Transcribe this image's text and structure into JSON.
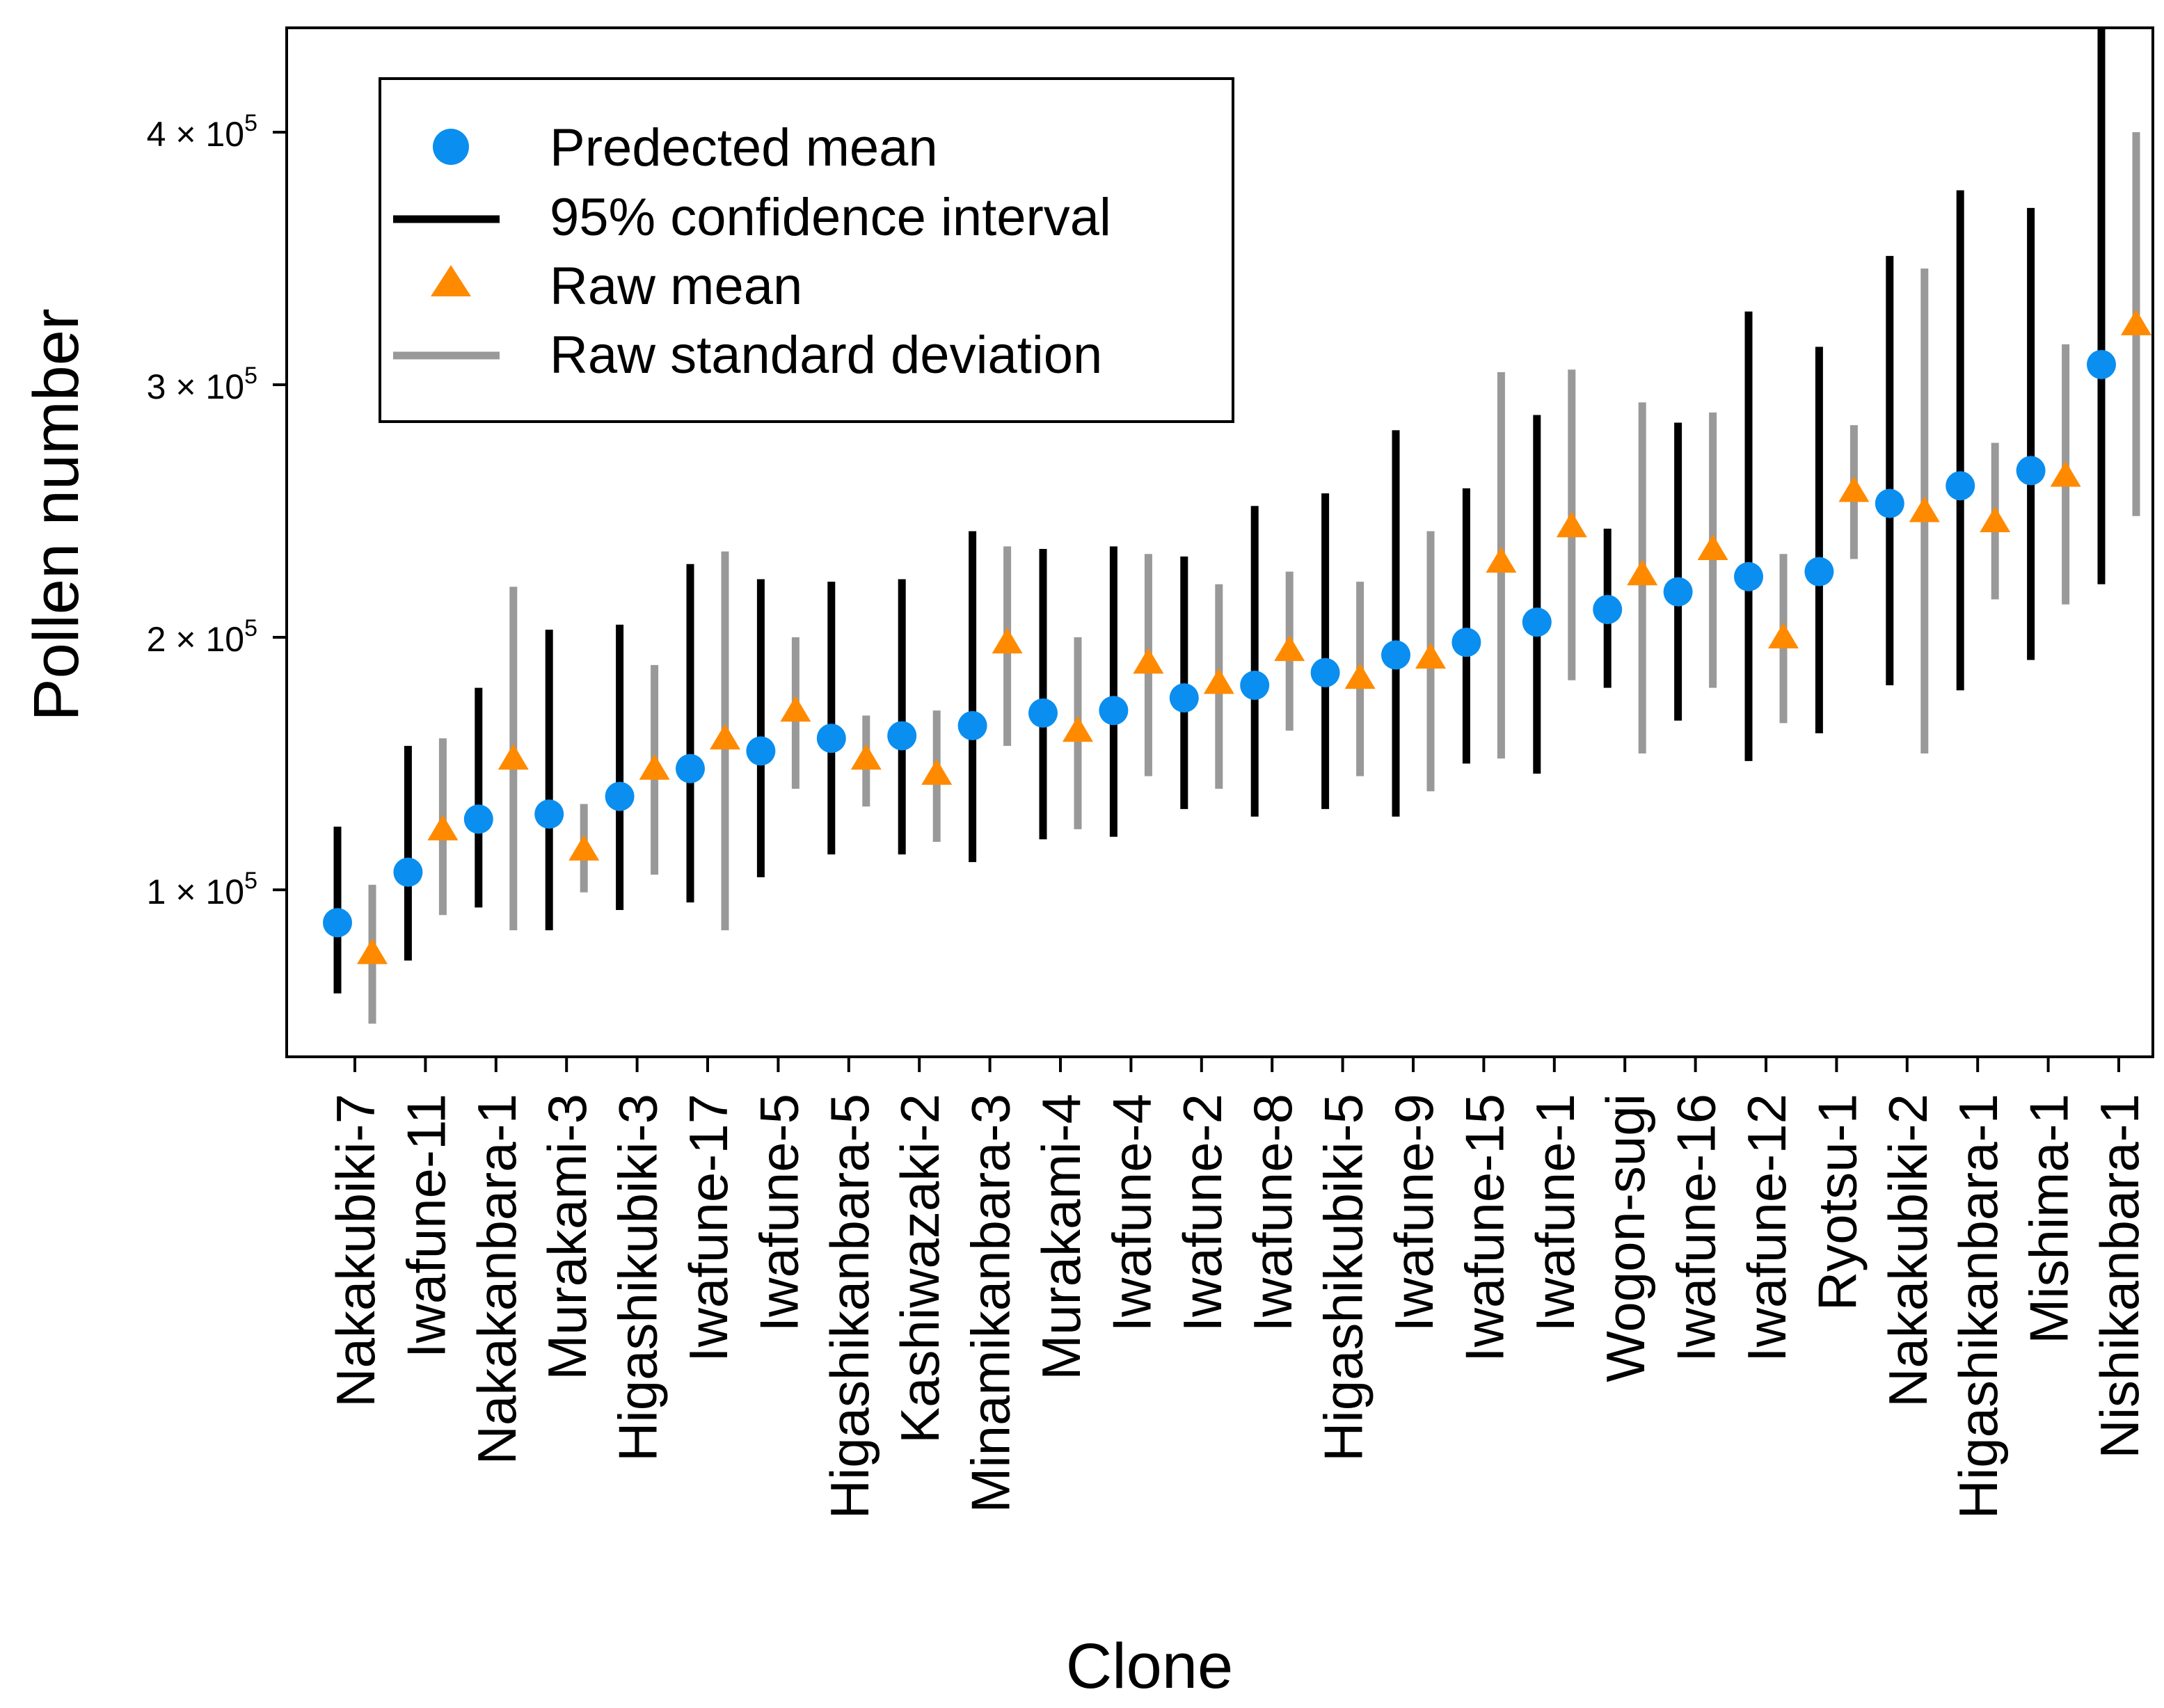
{
  "chart_data": {
    "type": "scatter",
    "title": "",
    "xlabel": "Clone",
    "ylabel": "Pollen number",
    "ylim": [
      40000,
      450000
    ],
    "yticks": [
      {
        "value": 100000,
        "mantissa": "1 × 10",
        "exp": "5"
      },
      {
        "value": 200000,
        "mantissa": "2 × 10",
        "exp": "5"
      },
      {
        "value": 300000,
        "mantissa": "3 × 10",
        "exp": "5"
      },
      {
        "value": 400000,
        "mantissa": "4 × 10",
        "exp": "5"
      }
    ],
    "legend": {
      "position": "top-left",
      "items": [
        {
          "label": "Predected mean",
          "kind": "circle"
        },
        {
          "label": "95% confidence interval",
          "kind": "black-line"
        },
        {
          "label": "Raw mean",
          "kind": "triangle"
        },
        {
          "label": "Raw standard deviation",
          "kind": "gray-line"
        }
      ]
    },
    "colors": {
      "predicted": "#0a8ef0",
      "raw": "#ff8a00",
      "ci": "#000000",
      "sd": "#999999"
    },
    "categories": [
      "Nakakubiki-7",
      "Iwafune-11",
      "Nakakanbara-1",
      "Murakami-3",
      "Higashikubiki-3",
      "Iwafune-17",
      "Iwafune-5",
      "Higashikanbara-5",
      "Kashiwazaki-2",
      "Minamikanbara-3",
      "Murakami-4",
      "Iwafune-4",
      "Iwafune-2",
      "Iwafune-8",
      "Higashikubiki-5",
      "Iwafune-9",
      "Iwafune-15",
      "Iwafune-1",
      "Wogon-sugi",
      "Iwafune-16",
      "Iwafune-12",
      "Ryotsu-1",
      "Nakakubiki-2",
      "Higashikanbara-1",
      "Mishima-1",
      "Nishikanbara-1"
    ],
    "series": [
      {
        "name": "Predected mean",
        "values": [
          87000,
          107000,
          128000,
          130000,
          137000,
          148000,
          155000,
          160000,
          161000,
          165000,
          170000,
          171000,
          176000,
          181000,
          186000,
          193000,
          198000,
          206000,
          211000,
          218000,
          224000,
          226000,
          253000,
          260000,
          266000,
          308000
        ]
      },
      {
        "name": "95% confidence interval",
        "lower": [
          59000,
          72000,
          93000,
          84000,
          92000,
          95000,
          105000,
          114000,
          114000,
          111000,
          120000,
          121000,
          132000,
          129000,
          132000,
          129000,
          150000,
          146000,
          180000,
          167000,
          151000,
          162000,
          181000,
          179000,
          191000,
          221000
        ],
        "upper": [
          125000,
          157000,
          180000,
          203000,
          205000,
          229000,
          223000,
          222000,
          223000,
          242000,
          235000,
          236000,
          232000,
          252000,
          257000,
          282000,
          259000,
          288000,
          243000,
          285000,
          329000,
          315000,
          351000,
          377000,
          370000,
          456000
        ]
      },
      {
        "name": "Raw mean",
        "values": [
          75000,
          124000,
          152000,
          116000,
          148000,
          160000,
          171000,
          152000,
          146000,
          198000,
          163000,
          190000,
          182000,
          195000,
          184000,
          192000,
          230000,
          244000,
          225000,
          235000,
          200000,
          258000,
          250000,
          246000,
          264000,
          324000
        ]
      },
      {
        "name": "Raw standard deviation",
        "lower": [
          47000,
          90000,
          84000,
          99000,
          106000,
          84000,
          140000,
          133000,
          119000,
          157000,
          124000,
          145000,
          140000,
          163000,
          145000,
          139000,
          152000,
          183000,
          154000,
          180000,
          166000,
          231000,
          154000,
          215000,
          213000,
          248000
        ],
        "upper": [
          102000,
          160000,
          220000,
          134000,
          189000,
          234000,
          200000,
          169000,
          171000,
          236000,
          200000,
          233000,
          221000,
          226000,
          222000,
          242000,
          305000,
          306000,
          293000,
          289000,
          233000,
          284000,
          346000,
          277000,
          316000,
          400000
        ]
      }
    ]
  }
}
